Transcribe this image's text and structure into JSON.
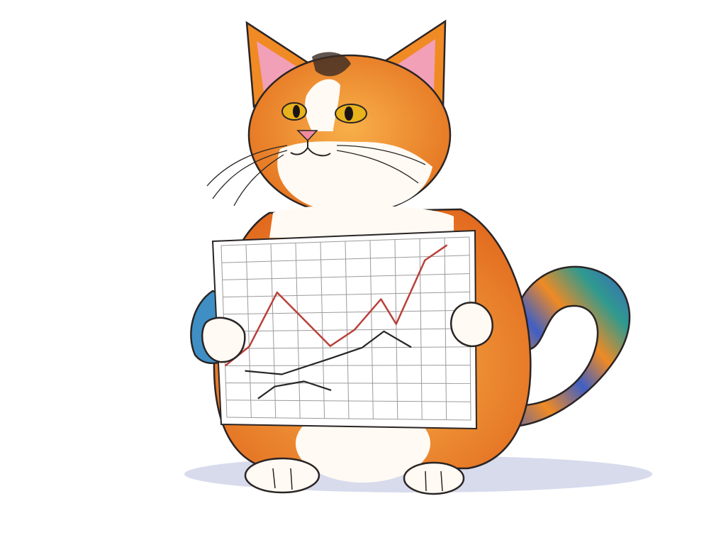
{
  "scene": {
    "subject": "cat",
    "held_object": "line-chart-paper"
  },
  "colors": {
    "background": "#ffffff",
    "fur_orange": "#f08a24",
    "fur_light": "#f7b24a",
    "fur_dark": "#d9601a",
    "fur_white": "#fffaf3",
    "ear_pink": "#f2a0b8",
    "nose_pink": "#f08aa0",
    "eye_yellow": "#e8b21c",
    "outline": "#2a2424",
    "tail_blue": "#3f5fc4",
    "tail_teal": "#2f9a8e",
    "paper": "#ffffff",
    "grid": "#9b9b9b",
    "shadow": "#c9cfe6",
    "series_red": "#b8413a",
    "series_black": "#262626"
  },
  "chart_data": {
    "type": "line",
    "xlabel": "",
    "ylabel": "",
    "xlim": [
      0,
      10
    ],
    "ylim": [
      0,
      10
    ],
    "grid": true,
    "legend": "none",
    "series": [
      {
        "color": "#b8413a",
        "x": [
          0,
          1.0,
          2.2,
          4.3,
          5.3,
          6.4,
          7.0,
          8.2,
          9.1
        ],
        "y": [
          3.0,
          4.1,
          7.2,
          4.1,
          5.0,
          6.7,
          5.3,
          8.8,
          9.6
        ]
      },
      {
        "color": "#262626",
        "x": [
          0.8,
          2.3,
          4.3,
          5.6,
          6.5,
          7.6
        ],
        "y": [
          2.7,
          2.5,
          3.4,
          4.0,
          4.9,
          4.0
        ]
      },
      {
        "color": "#262626",
        "x": [
          1.3,
          2.0,
          3.2,
          4.3
        ],
        "y": [
          1.1,
          1.8,
          2.1,
          1.6
        ]
      }
    ]
  }
}
